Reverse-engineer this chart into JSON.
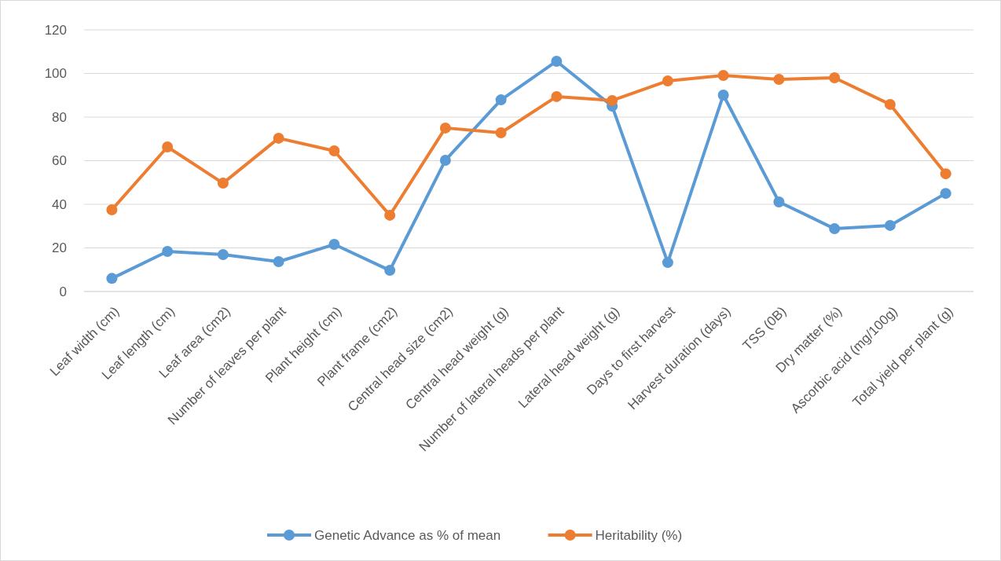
{
  "chart_data": {
    "type": "line",
    "categories": [
      "Leaf width (cm)",
      "Leaf length (cm)",
      "Leaf area (cm2)",
      "Number of leaves per plant",
      "Plant height (cm)",
      "Plant frame (cm2)",
      "Central head size (cm2)",
      "Central head weight (g)",
      "Number of lateral heads per plant",
      "Lateral head weight (g)",
      "Days to first harvest",
      "Harvest duration (days)",
      "TSS (0B)",
      "Dry matter (%)",
      "Ascorbic acid (mg/100g)",
      "Total yield per plant (g)"
    ],
    "series": [
      {
        "name": "Genetic Advance as % of mean",
        "color": "#5b9bd5",
        "values": [
          6,
          18.4,
          16.9,
          13.7,
          21.6,
          9.7,
          60.2,
          87.9,
          105.6,
          85,
          13.3,
          90.1,
          41.1,
          28.8,
          30.3,
          45
        ]
      },
      {
        "name": "Heritability (%)",
        "color": "#ed7d31",
        "values": [
          37.5,
          66.3,
          49.7,
          70.3,
          64.5,
          35,
          75,
          72.8,
          89.4,
          87.6,
          96.6,
          99.1,
          97.3,
          98,
          85.8,
          54
        ]
      }
    ],
    "ylim": [
      0,
      120
    ],
    "yticks": [
      0,
      20,
      40,
      60,
      80,
      100,
      120
    ],
    "grid": "y",
    "legend": "bottom",
    "marker": "circle",
    "line_style": "solid"
  }
}
